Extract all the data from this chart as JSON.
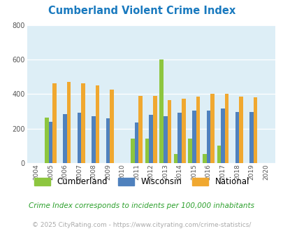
{
  "title": "Cumberland Violent Crime Index",
  "years": [
    2004,
    2005,
    2006,
    2007,
    2008,
    2009,
    2010,
    2011,
    2012,
    2013,
    2014,
    2015,
    2016,
    2017,
    2018,
    2019,
    2020
  ],
  "cumberland": [
    null,
    265,
    null,
    null,
    null,
    null,
    null,
    140,
    140,
    600,
    50,
    140,
    50,
    100,
    null,
    null,
    null
  ],
  "wisconsin": [
    null,
    240,
    285,
    290,
    270,
    258,
    null,
    235,
    278,
    270,
    290,
    305,
    305,
    318,
    298,
    295,
    null
  ],
  "national": [
    null,
    465,
    470,
    465,
    450,
    425,
    null,
    390,
    390,
    365,
    375,
    385,
    400,
    400,
    385,
    382,
    null
  ],
  "cumberland_color": "#8dc63f",
  "wisconsin_color": "#4f81bd",
  "national_color": "#f0a830",
  "bg_color": "#ddeef6",
  "title_color": "#1a7abf",
  "ylabel_max": 800,
  "yticks": [
    0,
    200,
    400,
    600,
    800
  ],
  "subtitle": "Crime Index corresponds to incidents per 100,000 inhabitants",
  "footer": "© 2025 CityRating.com - https://www.cityrating.com/crime-statistics/",
  "bar_width": 0.27
}
